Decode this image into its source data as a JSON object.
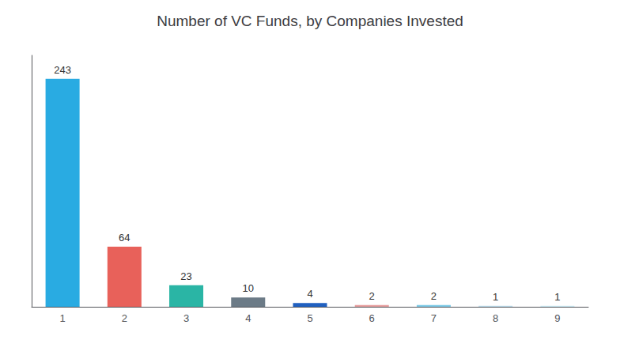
{
  "chart_data": {
    "type": "bar",
    "title": "Number of VC Funds, by Companies Invested",
    "categories": [
      1,
      2,
      3,
      4,
      5,
      6,
      7,
      8,
      9
    ],
    "values": [
      243,
      64,
      23,
      10,
      4,
      2,
      2,
      1,
      1
    ],
    "colors": [
      "#29abe2",
      "#e8615a",
      "#2ab5a5",
      "#6c7b87",
      "#2060c0",
      "#e8a0a0",
      "#80cce8",
      "#c0e0f0",
      "#d0eef8"
    ],
    "ylim": [
      0,
      268
    ],
    "grid": false,
    "data_labels": true,
    "tick_labels": "x"
  }
}
